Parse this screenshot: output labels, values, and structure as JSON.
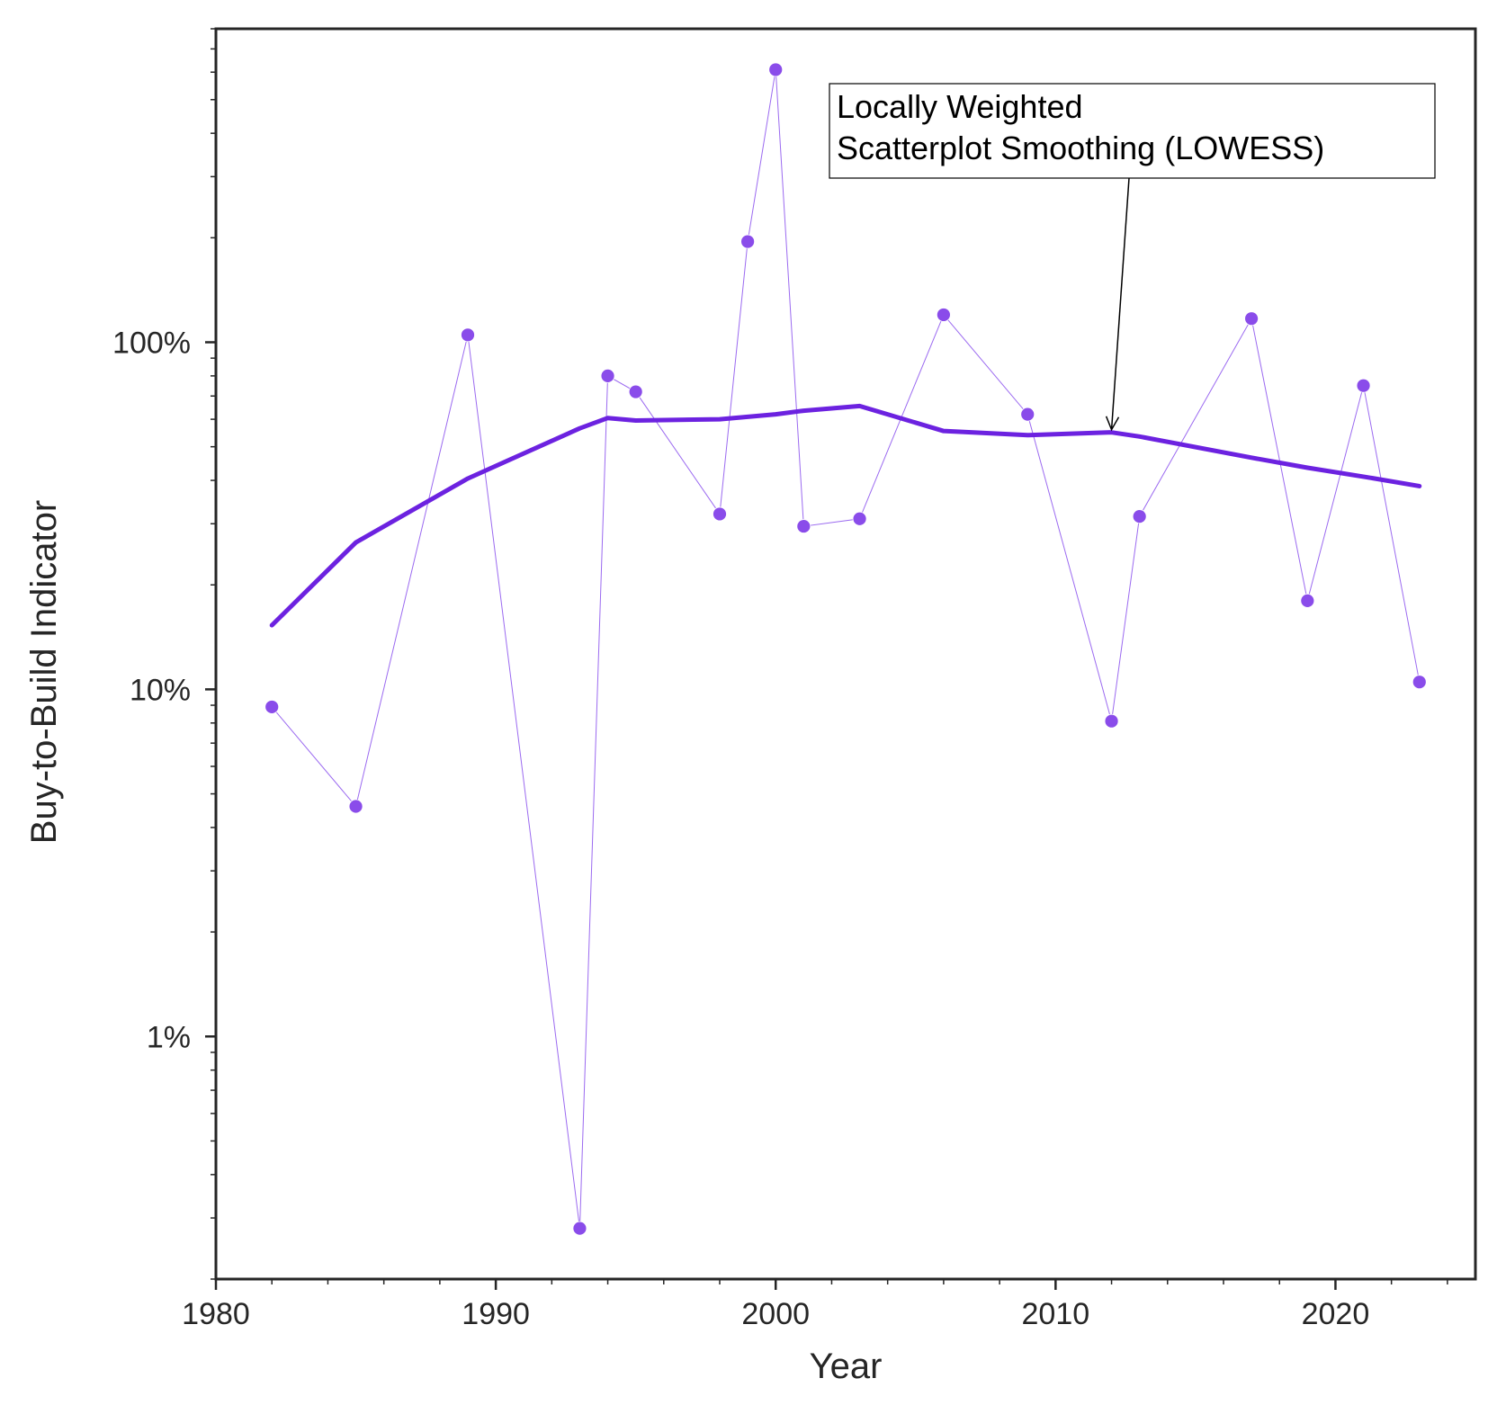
{
  "chart_data": {
    "type": "line",
    "title": "",
    "xlabel": "Year",
    "ylabel": "Buy-to-Build Indicator",
    "x_scale": "linear",
    "y_scale": "log",
    "xlim": [
      1980,
      2025
    ],
    "ylim": [
      0.2,
      800
    ],
    "x_ticks": [
      1980,
      1990,
      2000,
      2010,
      2020
    ],
    "x_tick_labels": [
      "1980",
      "1990",
      "2000",
      "2010",
      "2020"
    ],
    "y_ticks": [
      1,
      10,
      100
    ],
    "y_tick_labels": [
      "1%",
      "10%",
      "100%"
    ],
    "grid": false,
    "legend": "none",
    "colors": {
      "accent": "#6c22e0",
      "points": "#8a4cea",
      "thin_line": "#9b6af0",
      "axis": "#262626"
    },
    "series": [
      {
        "kind": "observed",
        "x": [
          1982,
          1985,
          1989,
          1993,
          1994,
          1995,
          1998,
          1999,
          2000,
          2001,
          2003,
          2006,
          2009,
          2012,
          2013,
          2017,
          2019,
          2021,
          2023
        ],
        "y": [
          8.9,
          4.6,
          105,
          0.28,
          80,
          72,
          32,
          195,
          610,
          29.5,
          31,
          120,
          62,
          8.1,
          31.5,
          117,
          18,
          75,
          10.5
        ]
      },
      {
        "kind": "lowess",
        "x": [
          1982,
          1985,
          1989,
          1993,
          1994,
          1995,
          1998,
          2000,
          2001,
          2003,
          2006,
          2009,
          2012,
          2013,
          2017,
          2019,
          2021,
          2023
        ],
        "y": [
          15.3,
          26.5,
          40.5,
          56.5,
          60.5,
          59.5,
          60,
          62,
          63.5,
          65.5,
          55.5,
          54,
          55,
          53.5,
          46.5,
          43.5,
          41,
          38.5
        ]
      }
    ],
    "annotation": {
      "lines": [
        "Locally Weighted",
        "Scatterplot Smoothing (LOWESS)"
      ],
      "arrow_to": {
        "x": 2012,
        "y": 55
      }
    }
  }
}
